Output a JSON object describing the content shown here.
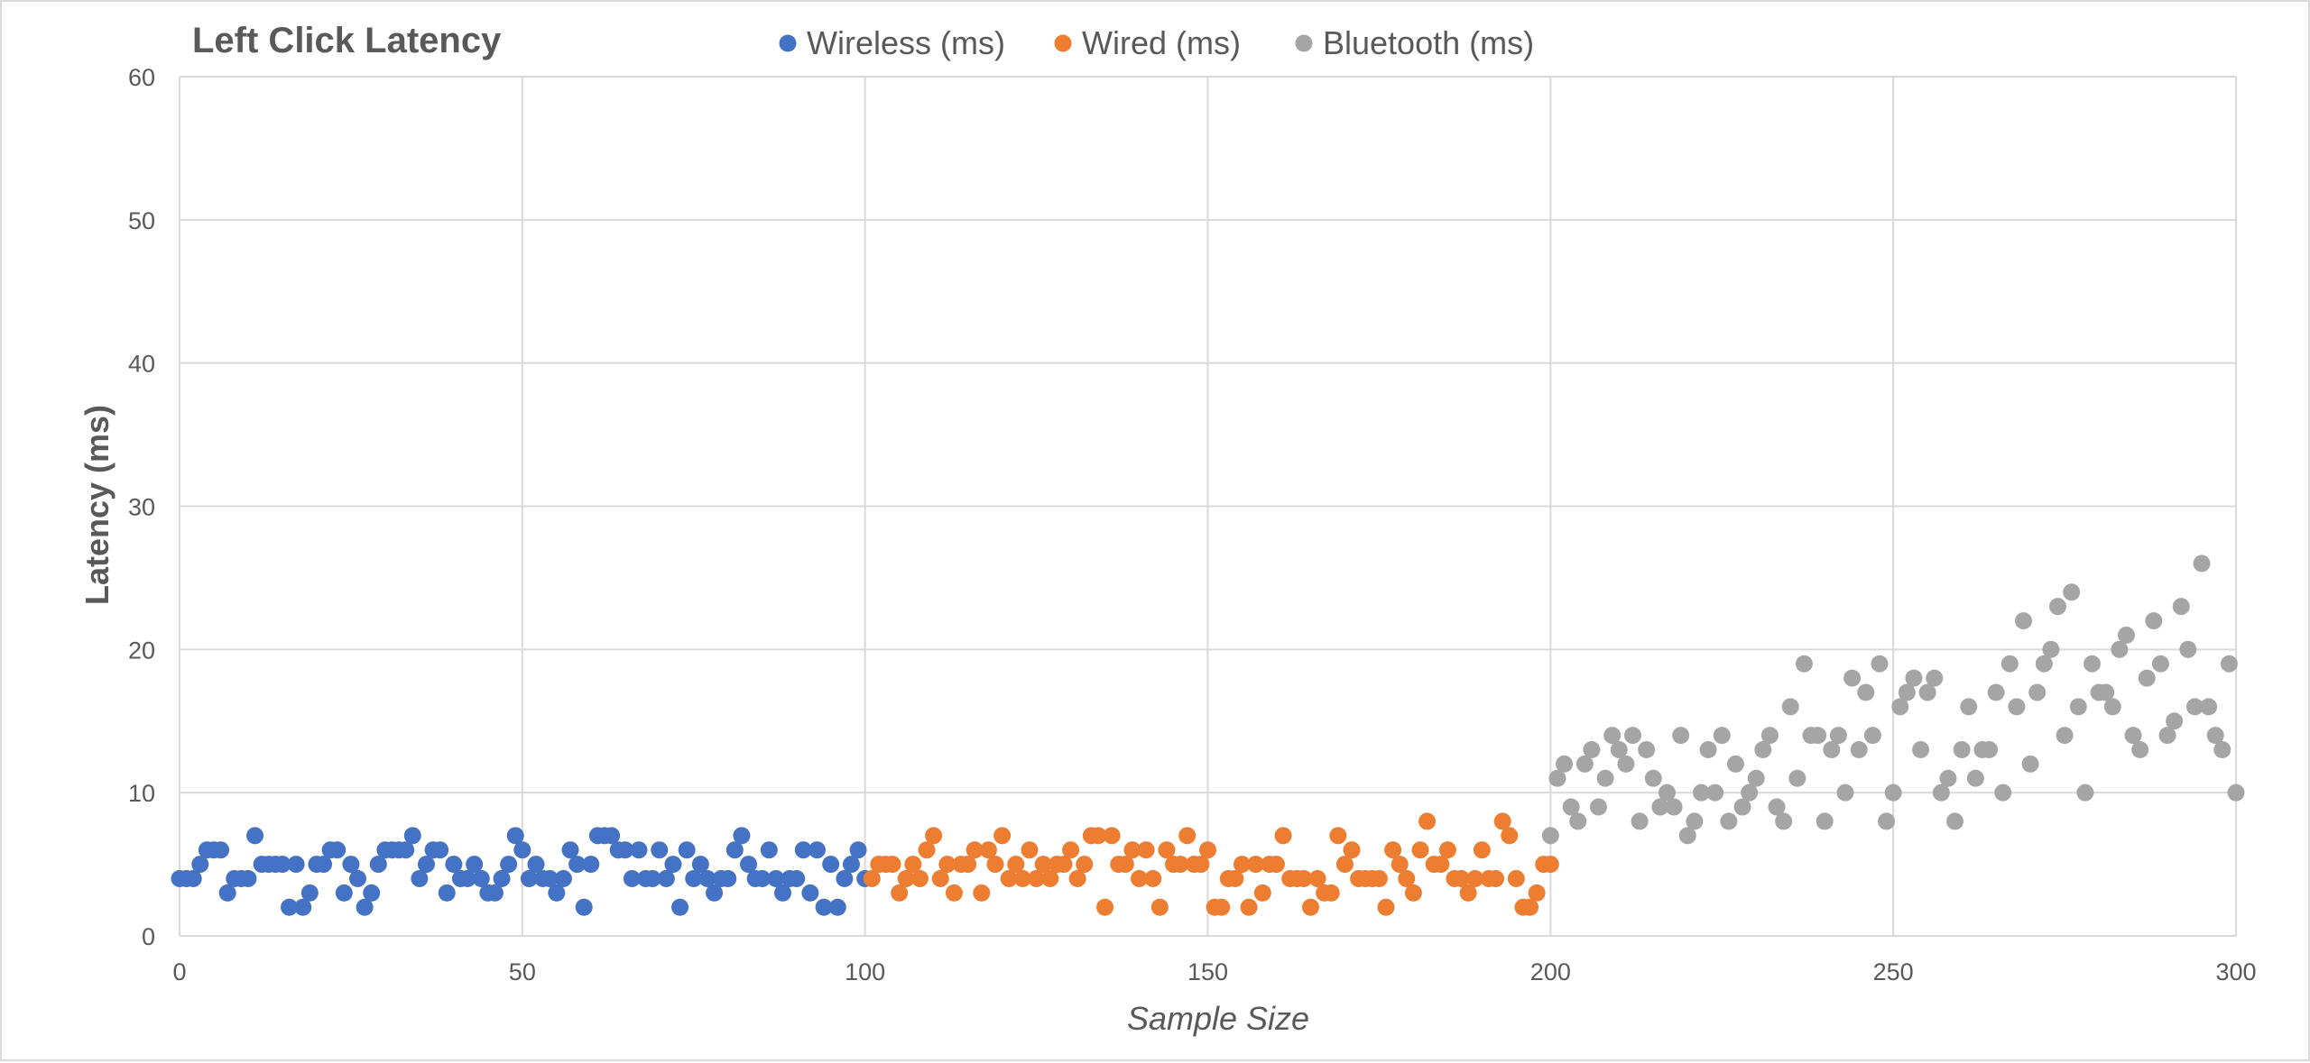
{
  "chart_data": {
    "type": "scatter",
    "title": "Left Click Latency",
    "xlabel": "Sample Size",
    "ylabel": "Latency (ms)",
    "xlim": [
      0,
      300
    ],
    "ylim": [
      0,
      60
    ],
    "xticks": [
      0,
      50,
      100,
      150,
      200,
      250,
      300
    ],
    "yticks": [
      0,
      10,
      20,
      30,
      40,
      50,
      60
    ],
    "grid": true,
    "legend_position": "top",
    "series": [
      {
        "name": "Wireless (ms)",
        "color": "#4472C4",
        "x": [
          0,
          1,
          2,
          3,
          4,
          5,
          6,
          7,
          8,
          9,
          10,
          11,
          12,
          13,
          14,
          15,
          16,
          17,
          18,
          19,
          20,
          21,
          22,
          23,
          24,
          25,
          26,
          27,
          28,
          29,
          30,
          31,
          32,
          33,
          34,
          35,
          36,
          37,
          38,
          39,
          40,
          41,
          42,
          43,
          44,
          45,
          46,
          47,
          48,
          49,
          50,
          51,
          52,
          53,
          54,
          55,
          56,
          57,
          58,
          59,
          60,
          61,
          62,
          63,
          64,
          65,
          66,
          67,
          68,
          69,
          70,
          71,
          72,
          73,
          74,
          75,
          76,
          77,
          78,
          79,
          80,
          81,
          82,
          83,
          84,
          85,
          86,
          87,
          88,
          89,
          90,
          91,
          92,
          93,
          94,
          95,
          96,
          97,
          98,
          99,
          100
        ],
        "y": [
          4,
          4,
          4,
          5,
          6,
          6,
          6,
          3,
          4,
          4,
          4,
          7,
          5,
          5,
          5,
          5,
          2,
          5,
          2,
          3,
          5,
          5,
          6,
          6,
          3,
          5,
          4,
          2,
          3,
          5,
          6,
          6,
          6,
          6,
          7,
          4,
          5,
          6,
          6,
          3,
          5,
          4,
          4,
          5,
          4,
          3,
          3,
          4,
          5,
          7,
          6,
          4,
          5,
          4,
          4,
          3,
          4,
          6,
          5,
          2,
          5,
          7,
          7,
          7,
          6,
          6,
          4,
          6,
          4,
          4,
          6,
          4,
          5,
          2,
          6,
          4,
          5,
          4,
          3,
          4,
          4,
          6,
          7,
          5,
          4,
          4,
          6,
          4,
          3,
          4,
          4,
          6,
          3,
          6,
          2,
          5,
          2,
          4,
          5,
          6,
          4
        ]
      },
      {
        "name": "Wired (ms)",
        "color": "#ED7D31",
        "x": [
          101,
          102,
          103,
          104,
          105,
          106,
          107,
          108,
          109,
          110,
          111,
          112,
          113,
          114,
          115,
          116,
          117,
          118,
          119,
          120,
          121,
          122,
          123,
          124,
          125,
          126,
          127,
          128,
          129,
          130,
          131,
          132,
          133,
          134,
          135,
          136,
          137,
          138,
          139,
          140,
          141,
          142,
          143,
          144,
          145,
          146,
          147,
          148,
          149,
          150,
          151,
          152,
          153,
          154,
          155,
          156,
          157,
          158,
          159,
          160,
          161,
          162,
          163,
          164,
          165,
          166,
          167,
          168,
          169,
          170,
          171,
          172,
          173,
          174,
          175,
          176,
          177,
          178,
          179,
          180,
          181,
          182,
          183,
          184,
          185,
          186,
          187,
          188,
          189,
          190,
          191,
          192,
          193,
          194,
          195,
          196,
          197,
          198,
          199,
          200
        ],
        "y": [
          4,
          5,
          5,
          5,
          3,
          4,
          5,
          4,
          6,
          7,
          4,
          5,
          3,
          5,
          5,
          6,
          3,
          6,
          5,
          7,
          4,
          5,
          4,
          6,
          4,
          5,
          4,
          5,
          5,
          6,
          4,
          5,
          7,
          7,
          2,
          7,
          5,
          5,
          6,
          4,
          6,
          4,
          2,
          6,
          5,
          5,
          7,
          5,
          5,
          6,
          2,
          2,
          4,
          4,
          5,
          2,
          5,
          3,
          5,
          5,
          7,
          4,
          4,
          4,
          2,
          4,
          3,
          3,
          7,
          5,
          6,
          4,
          4,
          4,
          4,
          2,
          6,
          5,
          4,
          3,
          6,
          8,
          5,
          5,
          6,
          4,
          4,
          3,
          4,
          6,
          4,
          4,
          8,
          7,
          4,
          2,
          2,
          3,
          5,
          5
        ]
      },
      {
        "name": "Bluetooth (ms)",
        "color": "#A5A5A5",
        "x": [
          200,
          202,
          204,
          206,
          208,
          210,
          212,
          214,
          216,
          218,
          220,
          222,
          224,
          226,
          228,
          230,
          232,
          234,
          236,
          238,
          240,
          242,
          244,
          246,
          248,
          250,
          252,
          254,
          256,
          258,
          260,
          262,
          264,
          266,
          268,
          270,
          272,
          274,
          276,
          278,
          280,
          282,
          284,
          286,
          288,
          290,
          292,
          294,
          296,
          298,
          300,
          201,
          203,
          205,
          207,
          209,
          211,
          213,
          215,
          217,
          219,
          221,
          223,
          225,
          227,
          229,
          231,
          233,
          235,
          237,
          239,
          241,
          243,
          245,
          247,
          249,
          251,
          253,
          255,
          257,
          259,
          261,
          263,
          265,
          267,
          269,
          271,
          273,
          275,
          277,
          279,
          281,
          283,
          285,
          287,
          289,
          291,
          293,
          295,
          297,
          299
        ],
        "y": [
          7,
          12,
          8,
          13,
          11,
          13,
          14,
          13,
          9,
          9,
          7,
          10,
          10,
          8,
          9,
          11,
          14,
          8,
          11,
          14,
          8,
          14,
          18,
          17,
          19,
          10,
          17,
          13,
          18,
          11,
          13,
          11,
          13,
          10,
          16,
          12,
          19,
          23,
          24,
          10,
          17,
          16,
          21,
          13,
          22,
          14,
          23,
          16,
          16,
          13,
          10,
          11,
          9,
          12,
          9,
          14,
          12,
          8,
          11,
          10,
          14,
          8,
          13,
          14,
          12,
          10,
          13,
          9,
          16,
          19,
          14,
          13,
          10,
          13,
          14,
          8,
          16,
          18,
          17,
          10,
          8,
          16,
          13,
          17,
          19,
          22,
          17,
          20,
          14,
          16,
          19,
          17,
          20,
          14,
          18,
          19,
          15,
          20,
          26,
          14,
          19
        ]
      }
    ]
  }
}
